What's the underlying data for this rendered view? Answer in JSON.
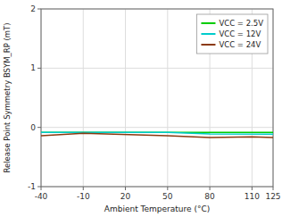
{
  "chart_data": {
    "type": "line",
    "title": "",
    "xlabel": "Ambient Temperature (°C)",
    "ylabel": "Release Point Symmetry BSYM_RP (mT)",
    "xlim": [
      -40,
      125
    ],
    "ylim": [
      -1,
      2
    ],
    "xticks": [
      -40,
      -10,
      20,
      50,
      80,
      110,
      125
    ],
    "yticks": [
      -1,
      0,
      1,
      2
    ],
    "grid": true,
    "legend": "upper right",
    "series": [
      {
        "name": "VCC = 2.5V",
        "color": "#00cc00",
        "x": [
          -40,
          125
        ],
        "values": [
          -0.085,
          -0.085
        ]
      },
      {
        "name": "VCC = 12V",
        "color": "#00cccc",
        "x": [
          -40,
          50,
          80,
          125
        ],
        "values": [
          -0.085,
          -0.085,
          -0.11,
          -0.115
        ]
      },
      {
        "name": "VCC = 24V",
        "color": "#8B3A10",
        "x": [
          -40,
          -10,
          50,
          80,
          110,
          125
        ],
        "values": [
          -0.14,
          -0.1,
          -0.14,
          -0.17,
          -0.16,
          -0.17
        ]
      }
    ]
  }
}
